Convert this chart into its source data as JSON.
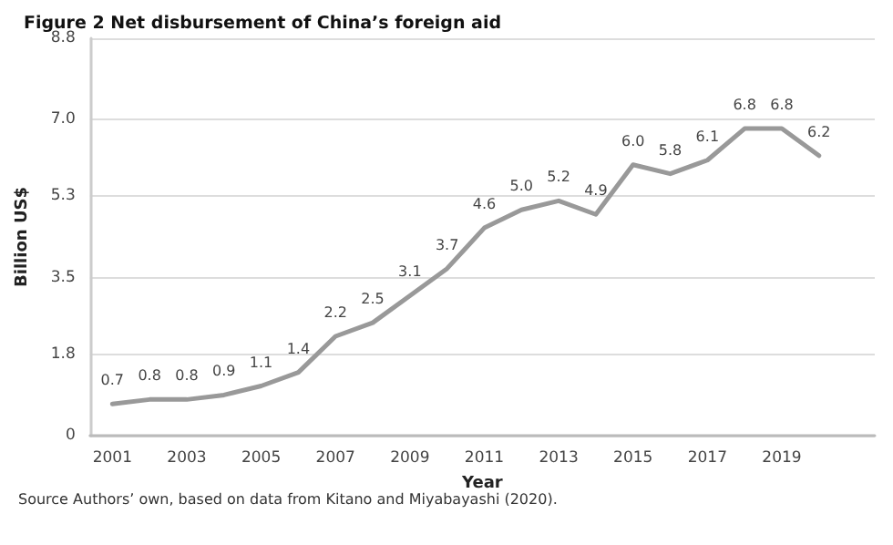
{
  "chart_data": {
    "type": "line",
    "title": "Figure 2 Net disbursement of China’s foreign aid",
    "xlabel": "Year",
    "ylabel": "Billion US$",
    "annotations": [
      "Source Authors’ own, based on data from Kitano and Miyabayashi (2020)."
    ],
    "x": [
      2001,
      2002,
      2003,
      2004,
      2005,
      2006,
      2007,
      2008,
      2009,
      2010,
      2011,
      2012,
      2013,
      2014,
      2015,
      2016,
      2017,
      2018,
      2019,
      2020
    ],
    "series": [
      {
        "color": "#999999",
        "values": [
          0.7,
          0.8,
          0.8,
          0.9,
          1.1,
          1.4,
          2.2,
          2.5,
          3.1,
          3.7,
          4.6,
          5.0,
          5.2,
          4.9,
          6.0,
          5.8,
          6.1,
          6.8,
          6.8,
          6.2
        ],
        "value_labels": [
          "0.7",
          "0.8",
          "0.8",
          "0.9",
          "1.1",
          "1.4",
          "2.2",
          "2.5",
          "3.1",
          "3.7",
          "4.6",
          "5.0",
          "5.2",
          "4.9",
          "6.0",
          "5.8",
          "6.1",
          "6.8",
          "6.8",
          "6.2"
        ]
      }
    ],
    "xlim": [
      2000.4,
      2021.5
    ],
    "xticks": [
      2001,
      2003,
      2005,
      2007,
      2009,
      2011,
      2013,
      2015,
      2017,
      2019
    ],
    "ylim": [
      0,
      8.8
    ],
    "yticks": [
      0,
      1.8,
      3.5,
      5.3,
      {
        "value": 7.0,
        "label": "7.0"
      },
      8.8
    ],
    "grid": "y",
    "marker": "none",
    "line_style": "solid"
  }
}
